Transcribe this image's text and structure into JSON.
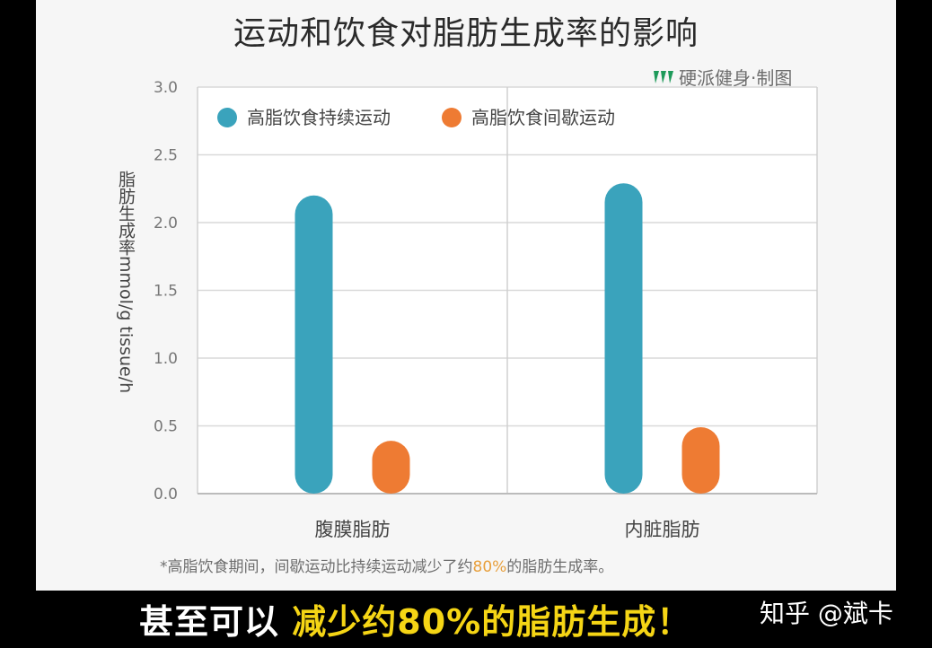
{
  "header": {
    "title": "运动和饮食对脂肪生成率的影响",
    "brand": "硬派健身·制图"
  },
  "chart_data": {
    "type": "bar",
    "title": "运动和饮食对脂肪生成率的影响",
    "ylabel": "脂肪生成率mmol/g tissue/h",
    "xlabel": "",
    "categories": [
      "腹膜脂肪",
      "内脏脂肪"
    ],
    "series": [
      {
        "name": "高脂饮食持续运动",
        "color": "#3aa3bc",
        "values": [
          2.2,
          2.29
        ]
      },
      {
        "name": "高脂饮食间歇运动",
        "color": "#ee7b33",
        "values": [
          0.39,
          0.49
        ]
      }
    ],
    "ylim": [
      0,
      3.0
    ],
    "yticks": [
      "0.0",
      "0.5",
      "1.0",
      "1.5",
      "2.0",
      "2.5",
      "3.0"
    ],
    "grid": true,
    "legend": "top-left"
  },
  "footnote": {
    "prefix": "*高脂饮食期间，间歇运动比持续运动减少了约",
    "highlight": "80%",
    "suffix": "的脂肪生成率。"
  },
  "caption": {
    "plain": "甚至可以",
    "emphasis": "减少约80%的脂肪生成！"
  },
  "watermark": "知乎 @斌卡"
}
